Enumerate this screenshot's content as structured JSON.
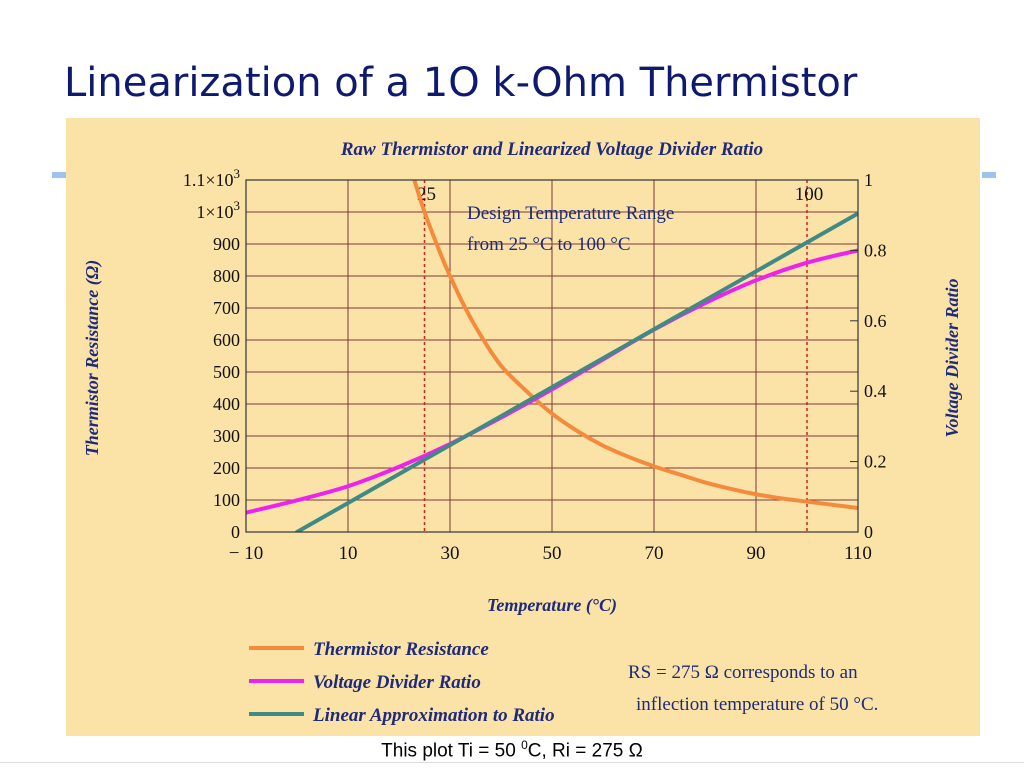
{
  "slide": {
    "title": "Linearization of a 1O k-Ohm Thermistor",
    "caption_before": "This plot Ti = 50 ",
    "caption_sup": "0",
    "caption_after": "C, Ri = 275 Ω"
  },
  "colors": {
    "title": "#0e1a6e",
    "panel_bg": "#fbe3a8",
    "grid": "#7a3a3a",
    "chart_title": "#1e2a7a",
    "thermistor": "#f48a3c",
    "ratio": "#ee22ee",
    "linear": "#3f8a84",
    "marker": "#cc2222"
  },
  "chart_data": {
    "type": "line",
    "title": "Raw Thermistor and Linearized Voltage Divider Ratio",
    "xlabel": "Temperature (°C)",
    "ylabel_left": "Thermistor Resistance (Ω)",
    "ylabel_right": "Voltage Divider Ratio",
    "xlim": [
      -10,
      110
    ],
    "ylim_left": [
      0,
      1100
    ],
    "ylim_right": [
      0,
      1
    ],
    "grid": true,
    "x_ticks": [
      {
        "value": -10,
        "label": "− 10"
      },
      {
        "value": 10,
        "label": "10"
      },
      {
        "value": 30,
        "label": "30"
      },
      {
        "value": 50,
        "label": "50"
      },
      {
        "value": 70,
        "label": "70"
      },
      {
        "value": 90,
        "label": "90"
      },
      {
        "value": 110,
        "label": "110"
      }
    ],
    "y_left_ticks": [
      {
        "value": 0,
        "label": "0"
      },
      {
        "value": 100,
        "label": "100"
      },
      {
        "value": 200,
        "label": "200"
      },
      {
        "value": 300,
        "label": "300"
      },
      {
        "value": 400,
        "label": "400"
      },
      {
        "value": 500,
        "label": "500"
      },
      {
        "value": 600,
        "label": "600"
      },
      {
        "value": 700,
        "label": "700"
      },
      {
        "value": 800,
        "label": "800"
      },
      {
        "value": 900,
        "label": "900"
      },
      {
        "value": 1000,
        "label": "1×10",
        "sup": "3"
      },
      {
        "value": 1100,
        "label": "1.1×10",
        "sup": "3"
      }
    ],
    "y_right_ticks": [
      {
        "value": 0,
        "label": "0"
      },
      {
        "value": 0.2,
        "label": "0.2"
      },
      {
        "value": 0.4,
        "label": "0.4"
      },
      {
        "value": 0.6,
        "label": "0.6"
      },
      {
        "value": 0.8,
        "label": "0.8"
      },
      {
        "value": 1,
        "label": "1"
      }
    ],
    "markers": [
      {
        "x": 25,
        "label": "25"
      },
      {
        "x": 100,
        "label": "100"
      }
    ],
    "annotation": [
      "Design Temperature Range",
      "from 25 °C to 100 °C"
    ],
    "note": [
      "RS = 275 Ω corresponds to an",
      "inflection temperature of 50 °C."
    ],
    "series": [
      {
        "name": "Thermistor Resistance",
        "axis": "left",
        "color": "#f48a3c",
        "x": [
          23,
          25,
          28,
          30,
          33,
          36,
          40,
          45,
          50,
          55,
          60,
          65,
          70,
          75,
          80,
          85,
          90,
          95,
          100,
          105,
          110
        ],
        "y": [
          1100,
          1000,
          875,
          800,
          700,
          615,
          520,
          440,
          370,
          315,
          270,
          235,
          205,
          180,
          155,
          135,
          118,
          105,
          95,
          85,
          75
        ]
      },
      {
        "name": "Voltage Divider Ratio",
        "axis": "right",
        "color": "#ee22ee",
        "x": [
          -10,
          0,
          10,
          20,
          30,
          40,
          50,
          60,
          70,
          80,
          90,
          100,
          110
        ],
        "y": [
          0.055,
          0.09,
          0.13,
          0.185,
          0.25,
          0.325,
          0.405,
          0.49,
          0.575,
          0.65,
          0.715,
          0.765,
          0.8
        ]
      },
      {
        "name": "Linear Approximation to Ratio",
        "axis": "right",
        "color": "#3f8a84",
        "x": [
          0,
          110
        ],
        "y": [
          0,
          0.905
        ]
      }
    ]
  }
}
